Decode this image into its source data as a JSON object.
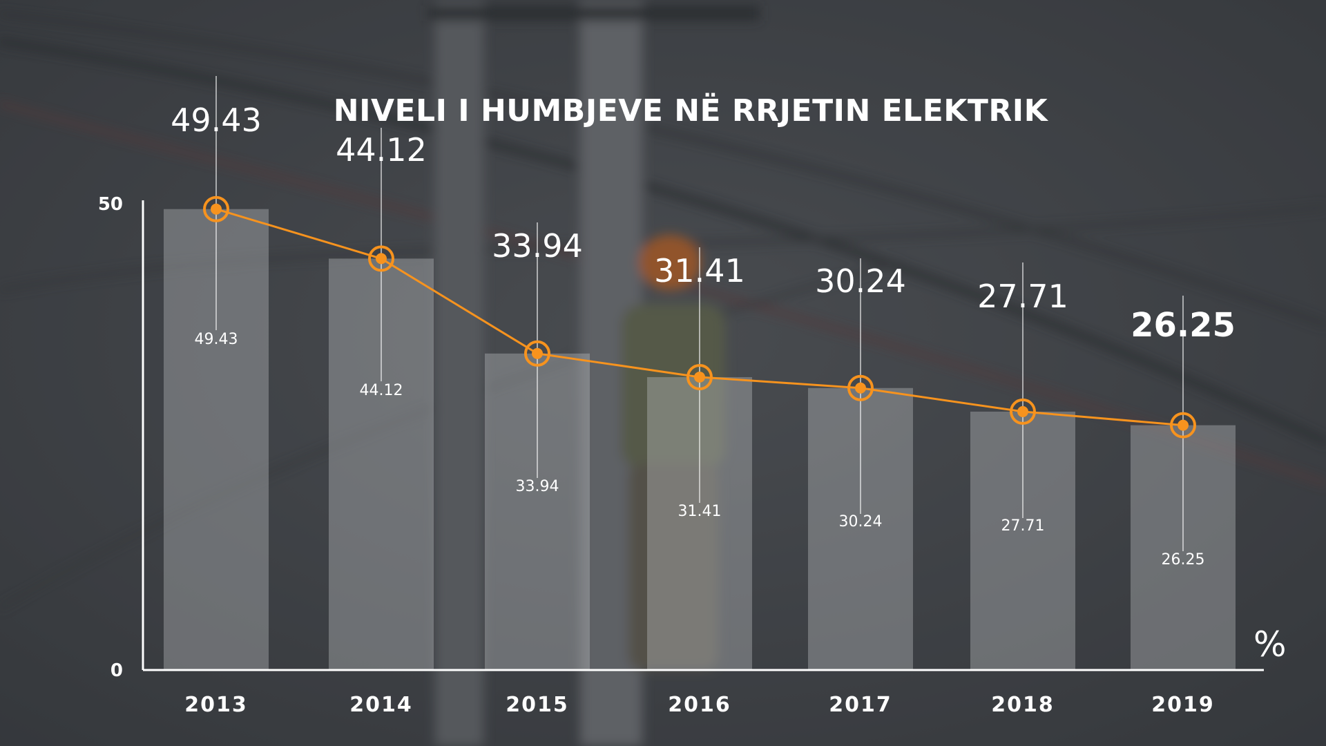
{
  "chart_data": {
    "type": "bar",
    "title": "NIVELI I HUMBJEVE NË RRJETIN ELEKTRIK",
    "unit_label": "%",
    "categories": [
      "2013",
      "2014",
      "2015",
      "2016",
      "2017",
      "2018",
      "2019"
    ],
    "values": [
      49.43,
      44.12,
      33.94,
      31.41,
      30.24,
      27.71,
      26.25
    ],
    "value_labels": [
      "49.43",
      "44.12",
      "33.94",
      "31.41",
      "30.24",
      "27.71",
      "26.25"
    ],
    "overlay": "line with ring markers over bars",
    "yticks": [
      "0",
      "50"
    ],
    "ylim": [
      0,
      50
    ],
    "highlighted_category": "2019",
    "colors": {
      "line": "#f7931e",
      "bars": "#bec0c3",
      "text": "#ffffff"
    }
  }
}
